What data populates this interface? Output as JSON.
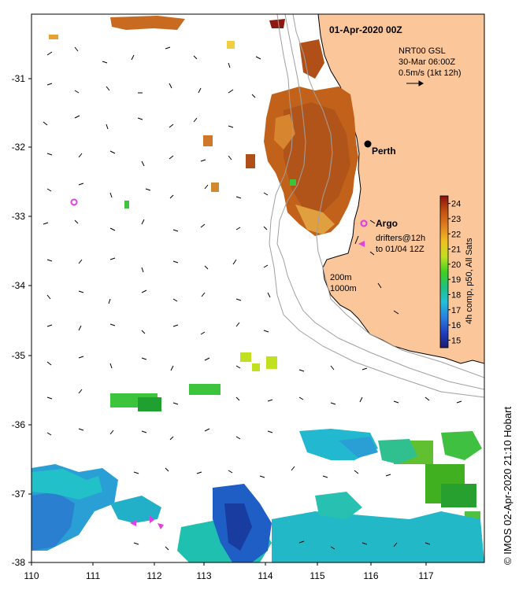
{
  "header": {
    "date_label": "01-Apr-2020 00Z",
    "product_lines": [
      "NRT00 GSL",
      "30-Mar 06:00Z",
      "0.5m/s (1kt 12h)"
    ]
  },
  "axes": {
    "x_ticks": [
      "110",
      "111",
      "112",
      "113",
      "114",
      "115",
      "116",
      "117"
    ],
    "y_ticks": [
      "-31",
      "-32",
      "-33",
      "-34",
      "-35",
      "-36",
      "-37",
      "-38"
    ]
  },
  "places": {
    "city": "Perth"
  },
  "argo": {
    "label": "Argo",
    "drifter_lines": [
      "drifters@12h",
      "to 01/04 12Z"
    ]
  },
  "isobaths": {
    "lines": [
      "200m",
      "1000m"
    ]
  },
  "colorbar": {
    "ticks": [
      "15",
      "16",
      "17",
      "18",
      "19",
      "20",
      "21",
      "22",
      "23",
      "24"
    ],
    "label": "4h comp, p50, All Sats",
    "min": 14.5,
    "max": 24.5
  },
  "credit": "© IMOS 02-Apr-2020 21:10 Hobart",
  "colors": {
    "land": "#fbc79a",
    "cool_sst": "#2a9fd6",
    "warm_sst": "#c2621a",
    "argo_marker": "#e040e0",
    "drifter_marker": "#e040e0"
  }
}
